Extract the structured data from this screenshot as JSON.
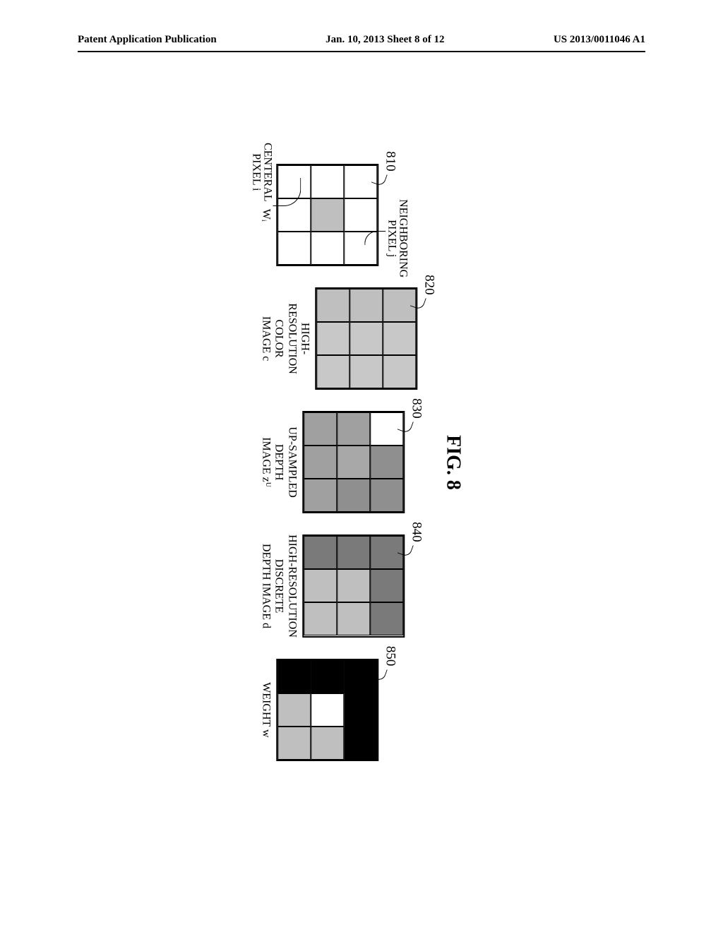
{
  "header": {
    "left": "Patent Application Publication",
    "center": "Jan. 10, 2013  Sheet 8 of 12",
    "right": "US 2013/0011046 A1"
  },
  "figure": {
    "title": "FIG. 8",
    "grids": [
      {
        "ref": "810",
        "cells": [
          "#ffffff",
          "#ffffff",
          "#ffffff",
          "#ffffff",
          "#bfbfbf",
          "#ffffff",
          "#ffffff",
          "#ffffff",
          "#ffffff"
        ],
        "caption": "Wᵢ",
        "ann_top": "NEIGHBORING\nPIXEL j",
        "ann_left": "CENTERAL\nPIXEL i"
      },
      {
        "ref": "820",
        "cells": [
          "#bfbfbf",
          "#c8c8c8",
          "#c8c8c8",
          "#bfbfbf",
          "#c8c8c8",
          "#c8c8c8",
          "#bfbfbf",
          "#c8c8c8",
          "#c8c8c8"
        ],
        "caption": "HIGH-\nRESOLUTION\nCOLOR\nIMAGE c"
      },
      {
        "ref": "830",
        "cells": [
          "#ffffff",
          "#8f8f8f",
          "#8f8f8f",
          "#a0a0a0",
          "#a8a8a8",
          "#8f8f8f",
          "#a0a0a0",
          "#a0a0a0",
          "#a0a0a0"
        ],
        "caption": "UP-SAMPLED\nDEPTH\nIMAGE zᵁ"
      },
      {
        "ref": "840",
        "cells": [
          "#7a7a7a",
          "#7a7a7a",
          "#7a7a7a",
          "#7a7a7a",
          "#bfbfbf",
          "#bfbfbf",
          "#7a7a7a",
          "#bfbfbf",
          "#bfbfbf"
        ],
        "caption": "HIGH-RESOLUTION\nDISCRETE\nDEPTH IMAGE d"
      },
      {
        "ref": "850",
        "cells": [
          "#000000",
          "#000000",
          "#000000",
          "#000000",
          "#ffffff",
          "#bfbfbf",
          "#000000",
          "#bfbfbf",
          "#bfbfbf"
        ],
        "caption": "WEIGHT w"
      }
    ]
  }
}
